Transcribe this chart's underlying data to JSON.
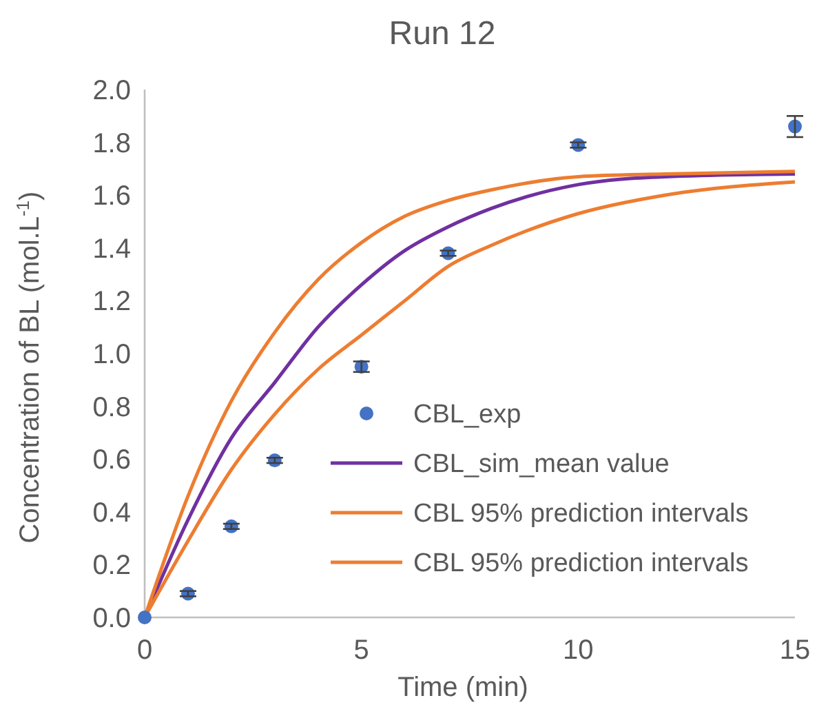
{
  "chart_data": {
    "type": "scatter",
    "title": "Run 12",
    "xlabel": "Time (min)",
    "ylabel": "Concentration of BL (mol.L$^{-1}$)",
    "xlim": [
      0,
      15
    ],
    "ylim": [
      0,
      2
    ],
    "xticks": [
      0,
      5,
      10,
      15
    ],
    "yticks": [
      {
        "value": 0,
        "label": "0.0"
      },
      0.2,
      0.4,
      0.6,
      0.8,
      {
        "value": 1,
        "label": "1.0"
      },
      1.2,
      1.4,
      1.6,
      1.8,
      {
        "value": 2,
        "label": "2.0"
      }
    ],
    "series": [
      {
        "name": "CBL_exp",
        "color": "#4472c4",
        "marker": "circle",
        "x": [
          0,
          1,
          2,
          3,
          5,
          7,
          10,
          15
        ],
        "values": [
          0,
          0.09,
          0.345,
          0.595,
          0.95,
          1.38,
          1.79,
          1.86
        ],
        "errors": [
          null,
          0.01,
          0.01,
          0.01,
          0.02,
          0.01,
          0.01,
          0.04
        ]
      },
      {
        "name": "CBL_sim_mean value",
        "type": "line",
        "color": "#7030a0",
        "x": [
          0,
          1,
          2,
          3,
          4,
          5,
          6,
          7,
          8,
          10,
          12,
          15
        ],
        "values": [
          0,
          0.37,
          0.68,
          0.89,
          1.1,
          1.26,
          1.39,
          1.48,
          1.55,
          1.64,
          1.67,
          1.68
        ]
      },
      {
        "name": "CBL 95% prediction intervals",
        "type": "line",
        "color": "#ed7d31",
        "x": [
          0,
          1,
          2,
          3,
          4,
          5,
          6,
          7,
          8,
          10,
          12,
          15
        ],
        "values": [
          0,
          0.46,
          0.82,
          1.08,
          1.28,
          1.42,
          1.52,
          1.58,
          1.62,
          1.67,
          1.68,
          1.69
        ]
      },
      {
        "name": "CBL 95% prediction intervals",
        "type": "line",
        "color": "#ed7d31",
        "x": [
          0,
          1,
          2,
          3,
          4,
          5,
          6,
          7,
          8,
          10,
          12,
          15
        ],
        "values": [
          0,
          0.29,
          0.56,
          0.77,
          0.94,
          1.07,
          1.2,
          1.33,
          1.41,
          1.53,
          1.6,
          1.65
        ]
      }
    ],
    "grid": false,
    "legend": "bottom right"
  }
}
